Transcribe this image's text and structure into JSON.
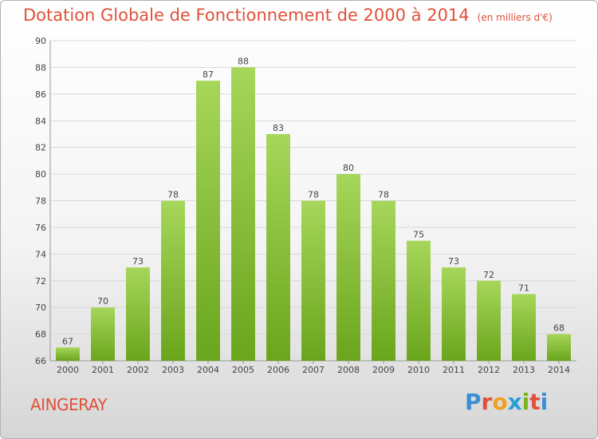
{
  "header": {
    "title": "Dotation Globale de Fonctionnement de 2000 à 2014",
    "unit": "(en milliers d'€)"
  },
  "footer": {
    "commune": "AINGERAY",
    "logo_letters": [
      "P",
      "r",
      "o",
      "x",
      "i",
      "t",
      "i"
    ],
    "logo_colors": [
      "#3b8fd4",
      "#e0513a",
      "#f0a020",
      "#2a9fd6",
      "#7ab51d",
      "#e0513a",
      "#3b8fd4"
    ]
  },
  "colors": {
    "bar_light": "#a6d65a",
    "bar_dark": "#6aa51c",
    "grid": "#d8d8d8",
    "text": "#444444",
    "title": "#e0513a"
  },
  "chart_data": {
    "type": "bar",
    "title": "Dotation Globale de Fonctionnement de 2000 à 2014",
    "subtitle": "(en milliers d'€)",
    "xlabel": "",
    "ylabel": "",
    "categories": [
      "2000",
      "2001",
      "2002",
      "2003",
      "2004",
      "2005",
      "2006",
      "2007",
      "2008",
      "2009",
      "2010",
      "2011",
      "2012",
      "2013",
      "2014"
    ],
    "values": [
      67,
      70,
      73,
      78,
      87,
      88,
      83,
      78,
      80,
      78,
      75,
      73,
      72,
      71,
      68
    ],
    "ylim": [
      66,
      90
    ],
    "yticks": [
      66,
      68,
      70,
      72,
      74,
      76,
      78,
      80,
      82,
      84,
      86,
      88,
      90
    ],
    "grid": true,
    "legend": "none"
  }
}
